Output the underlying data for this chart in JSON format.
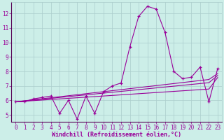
{
  "xlabel": "Windchill (Refroidissement éolien,°C)",
  "background_color": "#cceee8",
  "line_color": "#990099",
  "grid_color": "#aacccc",
  "x_values": [
    0,
    1,
    2,
    3,
    4,
    5,
    6,
    7,
    8,
    9,
    10,
    11,
    12,
    13,
    14,
    15,
    16,
    17,
    18,
    19,
    20,
    21,
    22,
    23
  ],
  "curve1": [
    5.9,
    5.9,
    6.1,
    6.2,
    6.3,
    5.1,
    6.0,
    4.7,
    6.3,
    5.1,
    6.6,
    7.0,
    7.2,
    9.7,
    11.8,
    12.5,
    12.3,
    10.7,
    8.0,
    7.5,
    7.6,
    8.3,
    5.9,
    8.2
  ],
  "line1": [
    5.9,
    5.97,
    6.04,
    6.11,
    6.18,
    6.25,
    6.32,
    6.39,
    6.46,
    6.53,
    6.6,
    6.67,
    6.74,
    6.81,
    6.88,
    6.95,
    7.02,
    7.09,
    7.16,
    7.23,
    7.3,
    7.37,
    7.44,
    7.85
  ],
  "line2": [
    5.9,
    5.96,
    6.02,
    6.08,
    6.14,
    6.2,
    6.26,
    6.32,
    6.38,
    6.44,
    6.5,
    6.56,
    6.62,
    6.68,
    6.74,
    6.8,
    6.86,
    6.92,
    6.98,
    7.04,
    7.1,
    7.16,
    7.22,
    7.72
  ],
  "line3": [
    5.9,
    5.94,
    5.98,
    6.02,
    6.06,
    6.1,
    6.14,
    6.18,
    6.22,
    6.26,
    6.3,
    6.34,
    6.38,
    6.42,
    6.46,
    6.5,
    6.54,
    6.58,
    6.62,
    6.66,
    6.7,
    6.74,
    6.78,
    7.58
  ],
  "ylim": [
    4.5,
    12.8
  ],
  "yticks": [
    5,
    6,
    7,
    8,
    9,
    10,
    11,
    12
  ],
  "xlim": [
    -0.5,
    23.5
  ],
  "xticks": [
    0,
    1,
    2,
    3,
    4,
    5,
    6,
    7,
    8,
    9,
    10,
    11,
    12,
    13,
    14,
    15,
    16,
    17,
    18,
    19,
    20,
    21,
    22,
    23
  ],
  "tick_fontsize": 5.5,
  "xlabel_fontsize": 6,
  "marker": "+"
}
